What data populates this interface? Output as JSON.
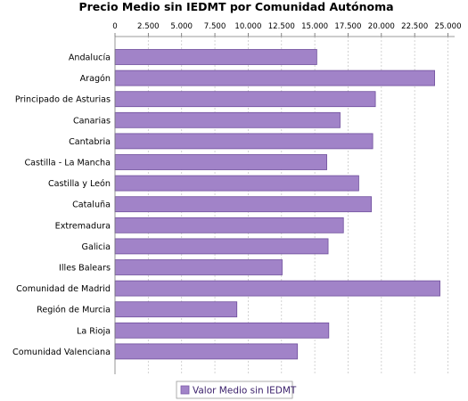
{
  "chart_data": {
    "type": "bar",
    "orientation": "horizontal",
    "title": "Precio Medio sin IEDMT por Comunidad Autónoma",
    "categories": [
      "Andalucía",
      "Aragón",
      "Principado de Asturias",
      "Canarias",
      "Cantabria",
      "Castilla - La Mancha",
      "Castilla y León",
      "Cataluña",
      "Extremadura",
      "Galicia",
      "Illes Balears",
      "Comunidad de Madrid",
      "Región de Murcia",
      "La Rioja",
      "Comunidad Valenciana"
    ],
    "series": [
      {
        "name": "Valor Medio sin IEDMT",
        "color": "#a183c8",
        "values": [
          15150,
          24000,
          19550,
          16900,
          19350,
          15900,
          18300,
          19250,
          17150,
          16000,
          12550,
          24400,
          9150,
          16050,
          13700
        ]
      }
    ],
    "x_ticks": [
      "0",
      "2.500",
      "5.000",
      "7.500",
      "10.000",
      "12.500",
      "15.000",
      "17.500",
      "20.000",
      "22.500",
      "25.000"
    ],
    "xlim": [
      0,
      25500
    ],
    "x_axis_position": "top",
    "grid": "vertical dashed",
    "legend": "bottom-center"
  }
}
